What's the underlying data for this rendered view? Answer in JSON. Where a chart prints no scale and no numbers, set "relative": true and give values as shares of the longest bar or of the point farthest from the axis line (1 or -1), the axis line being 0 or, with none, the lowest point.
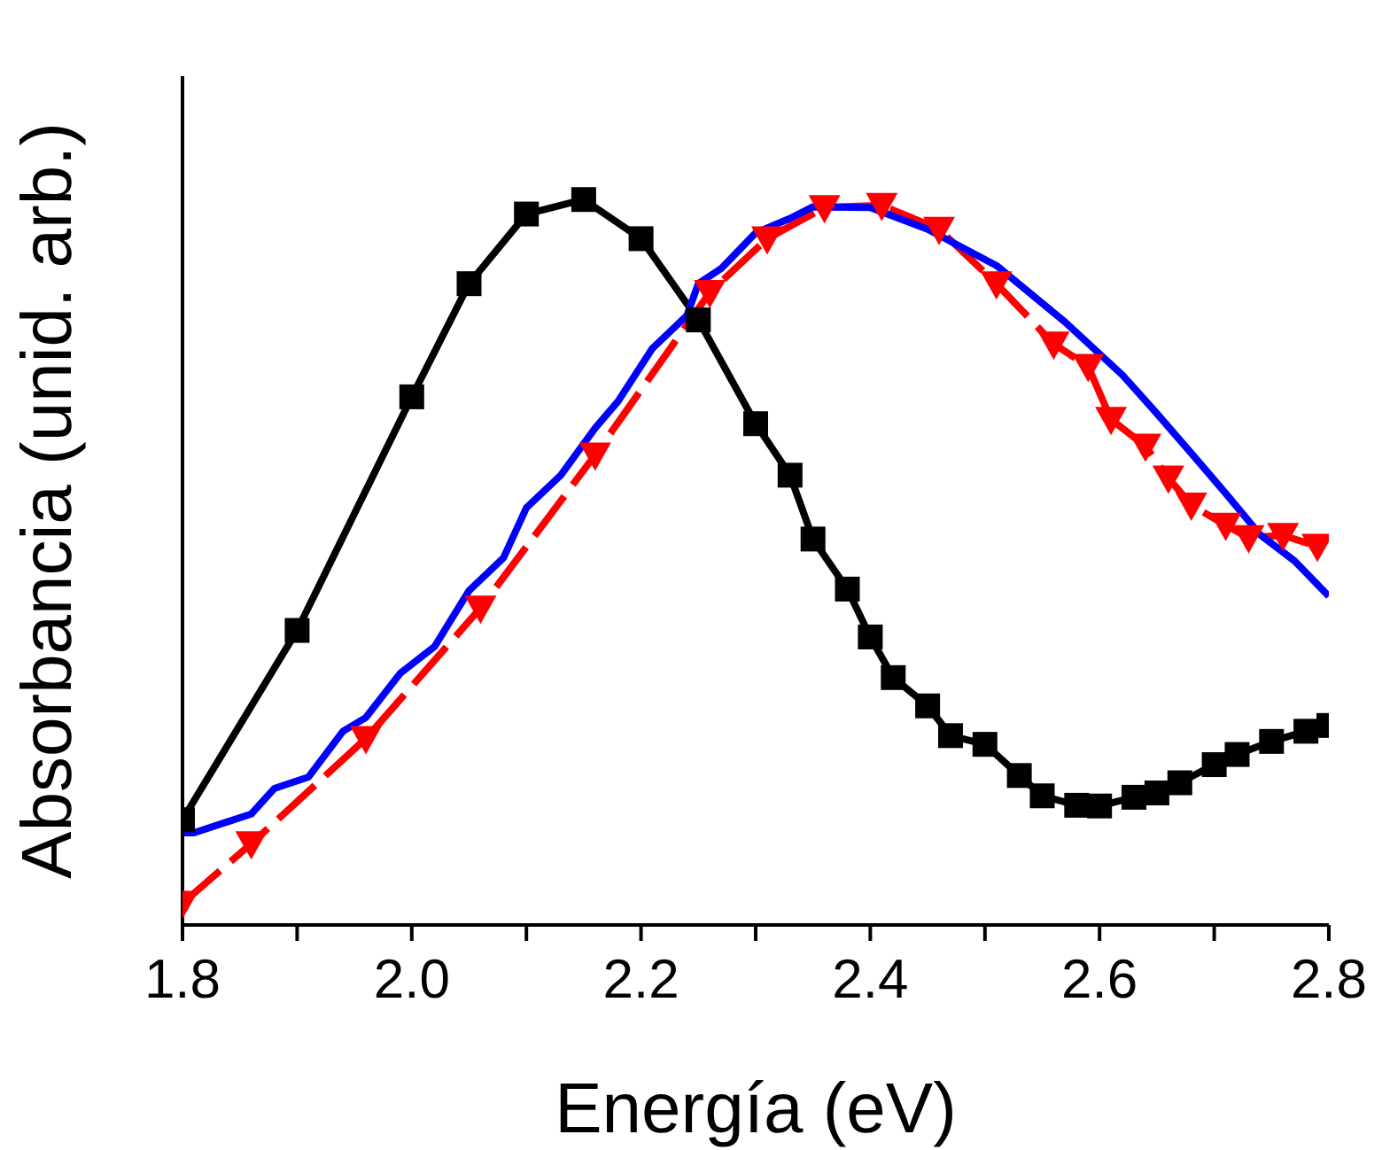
{
  "chart_data": {
    "type": "line",
    "relative": true,
    "xlabel": "Energía (eV)",
    "ylabel": "Absorbancia (unid. arb.)",
    "xlim": [
      1.8,
      2.8
    ],
    "xticks": [
      {
        "value": 1.8,
        "label": "1.8"
      },
      {
        "value": 1.9,
        "label": null
      },
      {
        "value": 2.0,
        "label": "2.0"
      },
      {
        "value": 2.1,
        "label": null
      },
      {
        "value": 2.2,
        "label": "2.2"
      },
      {
        "value": 2.3,
        "label": null
      },
      {
        "value": 2.4,
        "label": "2.4"
      },
      {
        "value": 2.5,
        "label": null
      },
      {
        "value": 2.6,
        "label": "2.6"
      },
      {
        "value": 2.7,
        "label": null
      },
      {
        "value": 2.8,
        "label": "2.8"
      }
    ],
    "series": [
      {
        "color": "#000000",
        "marker": "square",
        "line_style": "solid",
        "x": [
          1.8,
          1.9,
          2.0,
          2.05,
          2.1,
          2.15,
          2.2,
          2.25,
          2.3,
          2.33,
          2.35,
          2.38,
          2.4,
          2.42,
          2.45,
          2.47,
          2.5,
          2.53,
          2.55,
          2.58,
          2.6,
          2.63,
          2.65,
          2.67,
          2.7,
          2.72,
          2.75,
          2.78,
          2.8
        ],
        "values": [
          0.145,
          0.406,
          0.728,
          0.884,
          0.98,
          1.0,
          0.946,
          0.834,
          0.691,
          0.62,
          0.532,
          0.463,
          0.397,
          0.341,
          0.302,
          0.261,
          0.249,
          0.206,
          0.178,
          0.165,
          0.164,
          0.176,
          0.182,
          0.196,
          0.221,
          0.235,
          0.253,
          0.267,
          0.275
        ]
      },
      {
        "color": "#ff0000",
        "marker": "triangle",
        "line_style": "dashed",
        "x": [
          1.8,
          1.86,
          1.96,
          2.06,
          2.16,
          2.26,
          2.31,
          2.36,
          2.41,
          2.46,
          2.51,
          2.56,
          2.59,
          2.61,
          2.64,
          2.66,
          2.68,
          2.71,
          2.73,
          2.76,
          2.79
        ],
        "values": [
          0.03,
          0.112,
          0.257,
          0.437,
          0.648,
          0.872,
          0.946,
          0.989,
          0.992,
          0.959,
          0.884,
          0.801,
          0.77,
          0.697,
          0.66,
          0.616,
          0.579,
          0.551,
          0.534,
          0.537,
          0.522
        ]
      },
      {
        "color": "#0000ff",
        "marker": "none",
        "line_style": "solid",
        "x": [
          1.8,
          1.81,
          1.86,
          1.88,
          1.91,
          1.94,
          1.96,
          1.99,
          2.02,
          2.05,
          2.08,
          2.1,
          2.13,
          2.16,
          2.18,
          2.21,
          2.24,
          2.25,
          2.27,
          2.3,
          2.33,
          2.35,
          2.4,
          2.45,
          2.51,
          2.57,
          2.62,
          2.65,
          2.69,
          2.71,
          2.74,
          2.77,
          2.8
        ],
        "values": [
          0.127,
          0.127,
          0.153,
          0.188,
          0.204,
          0.267,
          0.286,
          0.347,
          0.384,
          0.461,
          0.506,
          0.575,
          0.62,
          0.685,
          0.722,
          0.795,
          0.84,
          0.884,
          0.905,
          0.954,
          0.974,
          0.99,
          0.989,
          0.959,
          0.909,
          0.831,
          0.758,
          0.705,
          0.632,
          0.595,
          0.538,
          0.502,
          0.453
        ]
      }
    ]
  }
}
